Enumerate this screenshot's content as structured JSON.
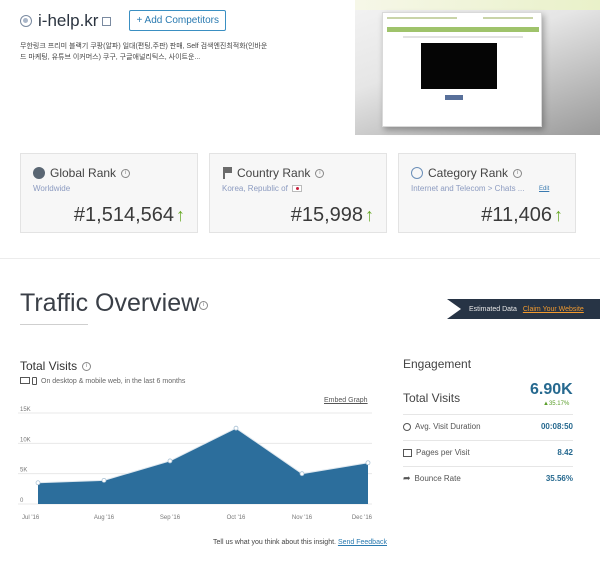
{
  "site": {
    "title": "i-help.kr",
    "add_competitors_label": "+ Add Competitors",
    "description": "무한링크 프리미 블랙기 쿠팡(알파) 일대(편팅,주판) 판매, Self 검색엔진최적화(인바운드 마케팅, 유튜브 이커머스) 쿠구, 구글애널리틱스, 사이트운..."
  },
  "ranks": [
    {
      "title": "Global Rank",
      "sub": "Worldwide",
      "value": "#1,514,564",
      "icon": "globe-icon"
    },
    {
      "title": "Country Rank",
      "sub": "Korea, Republic of",
      "value": "#15,998",
      "icon": "flag-icon"
    },
    {
      "title": "Category Rank",
      "sub": "Internet and Telecom > Chats ...",
      "edit_label": "Edit",
      "value": "#11,406",
      "icon": "category-icon"
    }
  ],
  "traffic": {
    "title": "Traffic Overview",
    "estimated_label": "Estimated Data",
    "claim_label": "Claim Your Website"
  },
  "total_visits": {
    "title": "Total Visits",
    "subtitle": "On desktop & mobile web, in the last 6 months",
    "embed_label": "Embed Graph"
  },
  "chart_data": {
    "type": "area",
    "categories": [
      "Jul '16",
      "Aug '16",
      "Sep '16",
      "Oct '16",
      "Nov '16",
      "Dec '16"
    ],
    "values": [
      3500,
      3900,
      7100,
      12500,
      5000,
      6800
    ],
    "y_ticks": [
      "15K",
      "10K",
      "5K",
      "0"
    ],
    "ylim": [
      0,
      15000
    ],
    "color": "#2c6e9c",
    "grid": true
  },
  "engagement": {
    "title": "Engagement",
    "total_label": "Total Visits",
    "total_value": "6.90K",
    "total_change": "35.17%",
    "rows": [
      {
        "label": "Avg. Visit Duration",
        "value": "00:08:50",
        "icon": "clock-icon"
      },
      {
        "label": "Pages per Visit",
        "value": "8.42",
        "icon": "pages-icon"
      },
      {
        "label": "Bounce Rate",
        "value": "35.56%",
        "icon": "bounce-icon"
      }
    ]
  },
  "feedback": {
    "text": "Tell us what you think about this insight.",
    "link_label": "Send Feedback"
  }
}
